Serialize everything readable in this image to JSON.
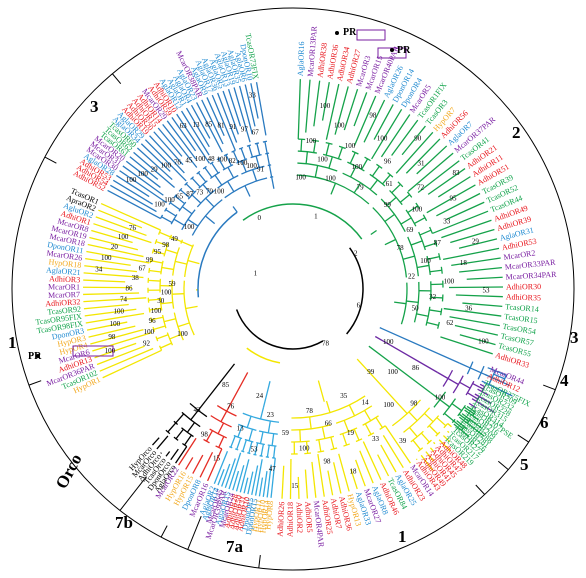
{
  "figure": {
    "clade_labels": [
      "1",
      "2",
      "3",
      "3",
      "4",
      "5",
      "6",
      "7a",
      "7b",
      "Orco"
    ],
    "pr_marker": "PR",
    "colors": {
      "Acyrthosiphon": "#e8141b",
      "Agrilus": "#1f8ad1",
      "Megacyllene": "#7a1fa2",
      "Tribolium": "#11a34b",
      "Dendroctonus": "#1f8ad1",
      "Hypothenemus": "#f2a81d",
      "black": "#000000"
    },
    "branch_colors": {
      "clade1": "#f3e600",
      "clade2": "#15a24a",
      "clade3": "#2a7ac0",
      "clade4": "#6d2aa4",
      "clade5": "#f3e600",
      "clade6": "#15a24a",
      "clade7a": "#34a9df",
      "clade7b": "#e52c24",
      "orco": "#000000"
    }
  },
  "sectors": {
    "clade3_top": [
      {
        "text": "AdhiOR52",
        "color": "Acyrthosiphon"
      },
      {
        "text": "AdhiOR54",
        "color": "Acyrthosiphon"
      },
      {
        "text": "AdhiOR53",
        "color": "Acyrthosiphon"
      },
      {
        "text": "AglaOR28",
        "color": "Agrilus"
      },
      {
        "text": "McarOR30",
        "color": "Megacyllene"
      },
      {
        "text": "McarOR31",
        "color": "Megacyllene"
      },
      {
        "text": "McarOR20",
        "color": "Megacyllene"
      },
      {
        "text": "TcasOR61",
        "color": "Tribolium"
      },
      {
        "text": "TcasOR62",
        "color": "Tribolium"
      },
      {
        "text": "TcasOR60",
        "color": "Tribolium"
      },
      {
        "text": "AglaOR34",
        "color": "Agrilus"
      },
      {
        "text": "AglaOR29",
        "color": "Agrilus"
      },
      {
        "text": "AdhiOR19",
        "color": "Acyrthosiphon"
      },
      {
        "text": "AdhiOR20",
        "color": "Acyrthosiphon"
      },
      {
        "text": "AdhiOR15",
        "color": "Acyrthosiphon"
      },
      {
        "text": "AdhiOR14",
        "color": "Acyrthosiphon"
      },
      {
        "text": "McarOR29",
        "color": "Megacyllene"
      },
      {
        "text": "AdhiOR59",
        "color": "Acyrthosiphon"
      },
      {
        "text": "AdhiOR10",
        "color": "Acyrthosiphon"
      },
      {
        "text": "AglaOR12",
        "color": "Agrilus"
      },
      {
        "text": "AglaOR1",
        "color": "Agrilus"
      },
      {
        "text": "AglaOR4",
        "color": "Agrilus"
      },
      {
        "text": "AglaOR23",
        "color": "Agrilus"
      },
      {
        "text": "McarOR38PAR",
        "color": "Megacyllene"
      },
      {
        "text": "AglaOR9",
        "color": "Agrilus"
      },
      {
        "text": "AglaOR17",
        "color": "Agrilus"
      },
      {
        "text": "AglaOR36",
        "color": "Agrilus"
      },
      {
        "text": "AglaOR5",
        "color": "Agrilus"
      },
      {
        "text": "AglaOR13",
        "color": "Agrilus"
      },
      {
        "text": "AglaOR19",
        "color": "Agrilus"
      },
      {
        "text": "AglaOR35",
        "color": "Agrilus"
      },
      {
        "text": "AglaOR6",
        "color": "Agrilus"
      },
      {
        "text": "DponOR10",
        "color": "Dendroctonus"
      },
      {
        "text": "TcasOR73FIX",
        "color": "Tribolium"
      }
    ],
    "clade1_left": [
      {
        "text": "HypOR1",
        "color": "Hypothenemus"
      },
      {
        "text": "TcasOR102",
        "color": "Tribolium"
      },
      {
        "text": "McarOR36PAR",
        "color": "Megacyllene"
      },
      {
        "text": "AdhiOR13",
        "color": "Acyrthosiphon"
      },
      {
        "text": "McarOR6",
        "color": "Megacyllene"
      },
      {
        "text": "HypOR4",
        "color": "Hypothenemus"
      },
      {
        "text": "HypOR3",
        "color": "Hypothenemus"
      },
      {
        "text": "DponOR3",
        "color": "Dendroctonus"
      },
      {
        "text": "TcasOR98FIX",
        "color": "Tribolium"
      },
      {
        "text": "TcasOR95FIX",
        "color": "Tribolium"
      },
      {
        "text": "TcasOR92",
        "color": "Tribolium"
      },
      {
        "text": "AdhiOR32",
        "color": "Acyrthosiphon"
      },
      {
        "text": "McarOR7",
        "color": "Megacyllene"
      },
      {
        "text": "McarOR1",
        "color": "Megacyllene"
      },
      {
        "text": "AdhiOR3",
        "color": "Acyrthosiphon"
      },
      {
        "text": "AglaOR21",
        "color": "Agrilus"
      },
      {
        "text": "HypOR18",
        "color": "Hypothenemus"
      },
      {
        "text": "McarOR26",
        "color": "Megacyllene"
      },
      {
        "text": "DponOR11",
        "color": "Dendroctonus"
      },
      {
        "text": "McarOR18",
        "color": "Megacyllene"
      },
      {
        "text": "McarOR19",
        "color": "Megacyllene"
      },
      {
        "text": "McarOR8",
        "color": "Megacyllene"
      },
      {
        "text": "AdhiOR1",
        "color": "Acyrthosiphon"
      },
      {
        "text": "AgluOR2",
        "color": "Agrilus"
      },
      {
        "text": "ApraOR2",
        "color": "black"
      },
      {
        "text": "TcasOR1",
        "color": "black"
      }
    ],
    "clade1_bottom": [
      {
        "text": "McarOR14",
        "color": "Megacyllene"
      },
      {
        "text": "AdhiOR23",
        "color": "Acyrthosiphon"
      },
      {
        "text": "AglaOR25",
        "color": "Agrilus"
      },
      {
        "text": "TcasOR84",
        "color": "Tribolium"
      },
      {
        "text": "AdhiOR46",
        "color": "Acyrthosiphon"
      },
      {
        "text": "AglaOR8",
        "color": "Agrilus"
      },
      {
        "text": "McarOR27",
        "color": "Megacyllene"
      },
      {
        "text": "AglaOR33",
        "color": "Agrilus"
      },
      {
        "text": "HypOR13",
        "color": "Hypothenemus"
      },
      {
        "text": "AdhiOR36",
        "color": "Acyrthosiphon"
      },
      {
        "text": "AdhiOR7",
        "color": "Acyrthosiphon"
      },
      {
        "text": "AdhiOR25",
        "color": "Acyrthosiphon"
      },
      {
        "text": "McarOR4PAR",
        "color": "Megacyllene"
      },
      {
        "text": "AdhiOR5",
        "color": "Acyrthosiphon"
      },
      {
        "text": "AdhiOR2",
        "color": "Acyrthosiphon"
      },
      {
        "text": "AdhiOR18",
        "color": "Acyrthosiphon"
      },
      {
        "text": "AdhiOR26",
        "color": "Acyrthosiphon"
      }
    ],
    "clade7a": [
      {
        "text": "HypOR8",
        "color": "Hypothenemus"
      },
      {
        "text": "HypOR14",
        "color": "Hypothenemus"
      },
      {
        "text": "HypOR10",
        "color": "Hypothenemus"
      },
      {
        "text": "HypOR11",
        "color": "Hypothenemus"
      },
      {
        "text": "DponOR15",
        "color": "Dendroctonus"
      },
      {
        "text": "DponOR5",
        "color": "Dendroctonus"
      },
      {
        "text": "AdhiOR10",
        "color": "Acyrthosiphon"
      },
      {
        "text": "AdhiOR31",
        "color": "Acyrthosiphon"
      },
      {
        "text": "AdhiOR50",
        "color": "Acyrthosiphon"
      },
      {
        "text": "AdhiOR28",
        "color": "Acyrthosiphon"
      },
      {
        "text": "McarOR24",
        "color": "Megacyllene"
      },
      {
        "text": "AglaOR15",
        "color": "Agrilus"
      },
      {
        "text": "McarOR39PAR",
        "color": "Megacyllene"
      },
      {
        "text": "McarOR45",
        "color": "Megacyllene"
      },
      {
        "text": "AglaOR14",
        "color": "Agrilus"
      },
      {
        "text": "AglaOR2",
        "color": "Agrilus"
      }
    ],
    "clade7b": [
      {
        "text": "McarOR16",
        "color": "Megacyllene"
      },
      {
        "text": "DponOR8",
        "color": "Dendroctonus"
      },
      {
        "text": "HypOR15",
        "color": "Hypothenemus"
      },
      {
        "text": "HypOR16",
        "color": "Hypothenemus"
      },
      {
        "text": "McarOR22",
        "color": "Megacyllene"
      }
    ],
    "orco": [
      {
        "text": "AglaOrco",
        "color": "black"
      },
      {
        "text": "DponOrco",
        "color": "black"
      },
      {
        "text": "TcasOrco",
        "color": "black"
      },
      {
        "text": "AdhiOrco",
        "color": "black"
      },
      {
        "text": "McarOrco",
        "color": "black"
      },
      {
        "text": "HypOrco",
        "color": "black"
      }
    ],
    "clade2": [
      {
        "text": "AglaOR16",
        "color": "Agrilus"
      },
      {
        "text": "McarOR13PAR",
        "color": "Megacyllene"
      },
      {
        "text": "AdhiOR38",
        "color": "Acyrthosiphon"
      },
      {
        "text": "AdhiOR36",
        "color": "Acyrthosiphon"
      },
      {
        "text": "AdhiOR34",
        "color": "Acyrthosiphon"
      },
      {
        "text": "AdhiOR27",
        "color": "Acyrthosiphon"
      },
      {
        "text": "McarOR3",
        "color": "Megacyllene"
      },
      {
        "text": "McarOR15",
        "color": "Megacyllene"
      },
      {
        "text": "McarOR40PAR",
        "color": "Megacyllene"
      },
      {
        "text": "AglaOR26",
        "color": "Agrilus"
      },
      {
        "text": "DponOR14",
        "color": "Dendroctonus"
      },
      {
        "text": "DponOR4",
        "color": "Dendroctonus"
      },
      {
        "text": "McarOR5",
        "color": "Megacyllene"
      },
      {
        "text": "TcasOR1FIX",
        "color": "Tribolium"
      },
      {
        "text": "TcasOR3",
        "color": "Tribolium"
      },
      {
        "text": "HypOR7",
        "color": "Hypothenemus"
      },
      {
        "text": "AdhiOR56",
        "color": "Acyrthosiphon"
      },
      {
        "text": "AglaOR7",
        "color": "Agrilus"
      },
      {
        "text": "McarOR37PAR",
        "color": "Megacyllene"
      },
      {
        "text": "TcasOR41",
        "color": "Tribolium"
      },
      {
        "text": "AdhiOR21",
        "color": "Acyrthosiphon"
      },
      {
        "text": "AdhiOR11",
        "color": "Acyrthosiphon"
      },
      {
        "text": "AdhiOR51",
        "color": "Acyrthosiphon"
      },
      {
        "text": "TcasOR39",
        "color": "Tribolium"
      },
      {
        "text": "TcasOR52",
        "color": "Tribolium"
      },
      {
        "text": "TcasOR44",
        "color": "Tribolium"
      },
      {
        "text": "AdhiOR49",
        "color": "Acyrthosiphon"
      },
      {
        "text": "AdhiOR39",
        "color": "Acyrthosiphon"
      },
      {
        "text": "AglaOR31",
        "color": "Agrilus"
      },
      {
        "text": "AdhiOR53",
        "color": "Acyrthosiphon"
      },
      {
        "text": "McarOR2",
        "color": "Megacyllene"
      },
      {
        "text": "McarOR33PAR",
        "color": "Megacyllene"
      },
      {
        "text": "McarOR34PAR",
        "color": "Megacyllene"
      },
      {
        "text": "AdhiOR30",
        "color": "Acyrthosiphon"
      },
      {
        "text": "AdhiOR35",
        "color": "Acyrthosiphon"
      },
      {
        "text": "TcasOR14",
        "color": "Tribolium"
      },
      {
        "text": "TcasOR15",
        "color": "Tribolium"
      },
      {
        "text": "TcasOR54",
        "color": "Tribolium"
      },
      {
        "text": "TcasOR57",
        "color": "Tribolium"
      },
      {
        "text": "TcasOR55",
        "color": "Tribolium"
      },
      {
        "text": "AdhiOR33",
        "color": "Acyrthosiphon"
      }
    ],
    "clade3_right": [
      {
        "text": "McarOR44",
        "color": "Megacyllene"
      },
      {
        "text": "AdhiOR12",
        "color": "Acyrthosiphon"
      },
      {
        "text": "TcasOR275FIX",
        "color": "Tribolium"
      }
    ],
    "clade4": [
      {
        "text": "TcasOR209",
        "color": "Tribolium"
      },
      {
        "text": "TcasOR232",
        "color": "Tribolium"
      },
      {
        "text": "TcasOR228",
        "color": "Tribolium"
      },
      {
        "text": "TcasOR315",
        "color": "Tribolium"
      },
      {
        "text": "TcasOR314",
        "color": "Tribolium"
      }
    ],
    "clade6": [
      {
        "text": "TcasOR207PSE",
        "color": "Tribolium"
      },
      {
        "text": "TcasOR216",
        "color": "Tribolium"
      },
      {
        "text": "TcasOR209",
        "color": "Tribolium"
      },
      {
        "text": "TcasOR288",
        "color": "Tribolium"
      },
      {
        "text": "TcasOR281",
        "color": "Tribolium"
      },
      {
        "text": "TcasOR276",
        "color": "Tribolium"
      }
    ],
    "clade5": [
      {
        "text": "TcasOR272",
        "color": "Tribolium"
      },
      {
        "text": "TcasOR217",
        "color": "Tribolium"
      },
      {
        "text": "TcasOR219",
        "color": "Tribolium"
      },
      {
        "text": "AdhiOR48",
        "color": "Acyrthosiphon"
      },
      {
        "text": "AdhiOR47",
        "color": "Acyrthosiphon"
      },
      {
        "text": "AdhiOR45",
        "color": "Acyrthosiphon"
      },
      {
        "text": "AdhiOR41",
        "color": "Acyrthosiphon"
      },
      {
        "text": "AdhiOR49",
        "color": "Acyrthosiphon"
      },
      {
        "text": "AdhiOR43",
        "color": "Acyrthosiphon"
      }
    ]
  },
  "bootstrap": {
    "clade3": [
      "100",
      "100",
      "100",
      "100",
      "100",
      "65",
      "29",
      "87",
      "100",
      "73",
      "76",
      "79",
      "45",
      "100",
      "100",
      "63",
      "48",
      "13",
      "100",
      "85",
      "82",
      "81",
      "100",
      "91",
      "100",
      "97",
      "91",
      "67",
      "33"
    ],
    "clade1": [
      "100",
      "92",
      "100",
      "100",
      "98",
      "96",
      "100",
      "100",
      "100",
      "30",
      "74",
      "100",
      "86",
      "59",
      "38",
      "34",
      "67",
      "100",
      "99",
      "20",
      "95",
      "100",
      "98",
      "76",
      "49"
    ],
    "clade2": [
      "100",
      "100",
      "100",
      "100",
      "100",
      "100",
      "100",
      "98",
      "100",
      "100",
      "79",
      "96",
      "90",
      "61",
      "31",
      "99",
      "72",
      "83",
      "100",
      "95",
      "69",
      "33",
      "78",
      "87",
      "29",
      "100",
      "18",
      "22",
      "100",
      "53",
      "32",
      "36",
      "50",
      "62",
      "100"
    ],
    "center": [
      "1",
      "0",
      "1",
      "2",
      "6",
      "78"
    ],
    "lower": [
      "100",
      "86",
      "100",
      "100",
      "98",
      "99",
      "100",
      "39",
      "14",
      "33",
      "35",
      "19",
      "18",
      "66",
      "98",
      "78",
      "100",
      "15",
      "59",
      "47",
      "23",
      "53",
      "24",
      "13",
      "15",
      "76",
      "98",
      "85",
      "43"
    ]
  }
}
